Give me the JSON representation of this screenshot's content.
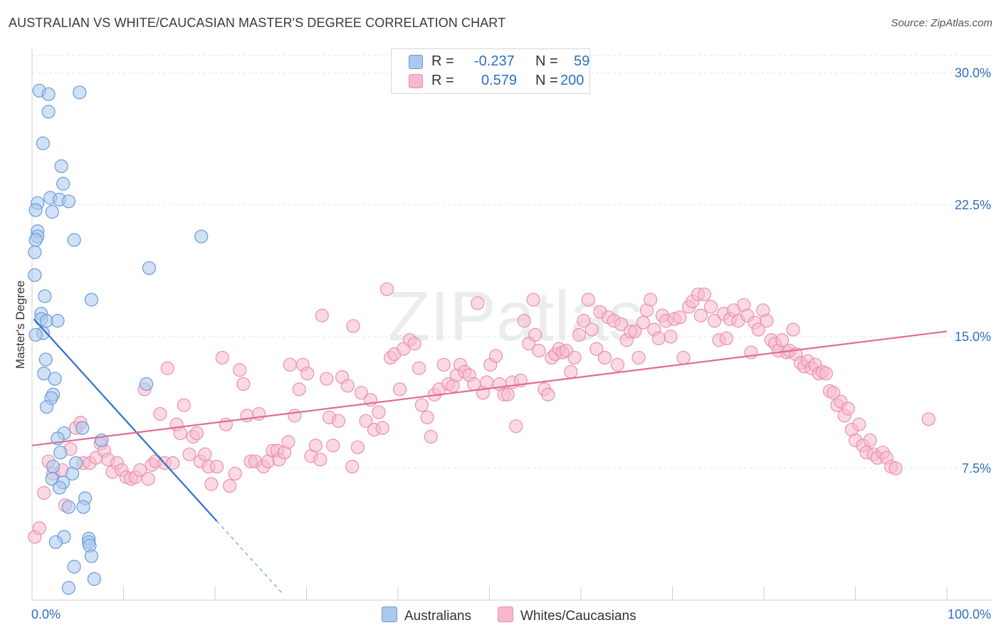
{
  "title": "AUSTRALIAN VS WHITE/CAUCASIAN MASTER'S DEGREE CORRELATION CHART",
  "source": "Source: ZipAtlas.com",
  "watermark": "ZIPatlas",
  "colors": {
    "blue_fill": "#a9c8ee",
    "blue_stroke": "#6a9bd8",
    "blue_line": "#2d6fd0",
    "pink_fill": "#f6b9cc",
    "pink_stroke": "#ec8fae",
    "pink_line": "#e06c95",
    "accent_text": "#2d6fc0"
  },
  "legend_top": {
    "rows": [
      {
        "r_label": "R =",
        "r_value": "-0.237",
        "n_label": "N =",
        "n_value": "59"
      },
      {
        "r_label": "R =",
        "r_value": "0.579",
        "n_label": "N =",
        "n_value": "200"
      }
    ]
  },
  "chart_data": {
    "type": "scatter",
    "title": "AUSTRALIAN VS WHITE/CAUCASIAN MASTER'S DEGREE CORRELATION CHART",
    "xlabel": "",
    "ylabel": "Master's Degree",
    "xlim": [
      0,
      100
    ],
    "ylim": [
      0,
      31
    ],
    "x_tick_labels": [
      "0.0%",
      "100.0%"
    ],
    "y_ticks": [
      7.5,
      15.0,
      22.5,
      30.0
    ],
    "y_tick_labels": [
      "7.5%",
      "15.0%",
      "22.5%",
      "30.0%"
    ],
    "grid": true,
    "legend_position": "bottom",
    "series": [
      {
        "name": "Australians",
        "r": -0.237,
        "n": 59,
        "trend": {
          "x": [
            0.2,
            20.2
          ],
          "y": [
            16.0,
            4.5
          ],
          "dashed_to": [
            27.5,
            0.3
          ]
        },
        "points": [
          [
            0.8,
            29.0
          ],
          [
            1.8,
            28.8
          ],
          [
            5.2,
            28.9
          ],
          [
            1.8,
            27.8
          ],
          [
            1.2,
            26.0
          ],
          [
            3.2,
            24.7
          ],
          [
            3.4,
            23.7
          ],
          [
            2.0,
            22.9
          ],
          [
            3.0,
            22.8
          ],
          [
            4.0,
            22.7
          ],
          [
            0.6,
            22.6
          ],
          [
            0.4,
            22.2
          ],
          [
            2.2,
            22.1
          ],
          [
            0.6,
            21.0
          ],
          [
            0.6,
            20.7
          ],
          [
            0.4,
            20.5
          ],
          [
            4.6,
            20.5
          ],
          [
            18.5,
            20.7
          ],
          [
            0.3,
            19.8
          ],
          [
            12.8,
            18.9
          ],
          [
            0.3,
            18.5
          ],
          [
            1.4,
            17.3
          ],
          [
            6.5,
            17.1
          ],
          [
            1.0,
            16.3
          ],
          [
            1.0,
            16.0
          ],
          [
            1.6,
            15.9
          ],
          [
            2.8,
            15.9
          ],
          [
            1.2,
            15.2
          ],
          [
            0.4,
            15.1
          ],
          [
            1.5,
            13.7
          ],
          [
            1.3,
            12.9
          ],
          [
            12.5,
            12.3
          ],
          [
            2.5,
            12.6
          ],
          [
            2.3,
            11.7
          ],
          [
            2.1,
            11.5
          ],
          [
            1.6,
            11.0
          ],
          [
            5.5,
            9.8
          ],
          [
            3.5,
            9.5
          ],
          [
            7.6,
            9.1
          ],
          [
            2.8,
            9.2
          ],
          [
            3.1,
            8.4
          ],
          [
            4.8,
            7.8
          ],
          [
            2.3,
            7.6
          ],
          [
            4.4,
            7.2
          ],
          [
            2.2,
            6.9
          ],
          [
            3.4,
            6.7
          ],
          [
            3.0,
            6.4
          ],
          [
            5.8,
            5.8
          ],
          [
            4.0,
            5.3
          ],
          [
            5.6,
            5.3
          ],
          [
            3.5,
            3.6
          ],
          [
            6.2,
            3.5
          ],
          [
            2.6,
            3.3
          ],
          [
            6.2,
            3.3
          ],
          [
            6.3,
            3.1
          ],
          [
            6.5,
            2.5
          ],
          [
            4.6,
            1.9
          ],
          [
            6.8,
            1.2
          ],
          [
            4.0,
            0.7
          ]
        ]
      },
      {
        "name": "Whites/Caucasians",
        "r": 0.579,
        "n": 200,
        "trend": {
          "x": [
            0.0,
            100.0
          ],
          "y": [
            8.8,
            15.3
          ]
        },
        "points": [
          [
            0.3,
            3.6
          ],
          [
            0.8,
            4.1
          ],
          [
            1.3,
            6.1
          ],
          [
            1.8,
            7.9
          ],
          [
            2.3,
            7.2
          ],
          [
            3.3,
            7.4
          ],
          [
            3.6,
            5.4
          ],
          [
            4.2,
            8.6
          ],
          [
            4.8,
            9.8
          ],
          [
            5.3,
            10.1
          ],
          [
            5.6,
            7.8
          ],
          [
            6.3,
            7.8
          ],
          [
            7.0,
            8.1
          ],
          [
            7.5,
            8.9
          ],
          [
            7.9,
            8.5
          ],
          [
            8.3,
            8.0
          ],
          [
            8.8,
            7.3
          ],
          [
            9.3,
            7.8
          ],
          [
            9.8,
            7.4
          ],
          [
            10.3,
            7.0
          ],
          [
            10.8,
            6.9
          ],
          [
            11.3,
            7.0
          ],
          [
            11.8,
            7.4
          ],
          [
            12.3,
            12.0
          ],
          [
            12.7,
            6.9
          ],
          [
            13.1,
            7.7
          ],
          [
            13.5,
            7.9
          ],
          [
            14.0,
            10.6
          ],
          [
            14.5,
            7.8
          ],
          [
            14.8,
            13.2
          ],
          [
            15.4,
            7.8
          ],
          [
            15.8,
            10.0
          ],
          [
            16.2,
            9.5
          ],
          [
            16.6,
            11.1
          ],
          [
            17.2,
            8.3
          ],
          [
            17.6,
            9.3
          ],
          [
            18.0,
            9.5
          ],
          [
            18.4,
            7.9
          ],
          [
            18.9,
            8.3
          ],
          [
            19.3,
            7.6
          ],
          [
            19.6,
            6.6
          ],
          [
            20.2,
            7.6
          ],
          [
            20.8,
            13.8
          ],
          [
            21.2,
            10.0
          ],
          [
            21.6,
            6.5
          ],
          [
            22.2,
            7.2
          ],
          [
            22.7,
            13.1
          ],
          [
            23.1,
            12.3
          ],
          [
            23.5,
            10.5
          ],
          [
            23.9,
            7.9
          ],
          [
            24.4,
            7.9
          ],
          [
            24.8,
            10.6
          ],
          [
            25.3,
            7.6
          ],
          [
            25.8,
            7.9
          ],
          [
            26.3,
            8.5
          ],
          [
            26.8,
            8.5
          ],
          [
            27.0,
            8.0
          ],
          [
            27.6,
            8.4
          ],
          [
            28.0,
            9.0
          ],
          [
            28.2,
            13.4
          ],
          [
            28.7,
            10.5
          ],
          [
            29.2,
            12.0
          ],
          [
            29.6,
            13.4
          ],
          [
            30.1,
            12.9
          ],
          [
            30.5,
            8.2
          ],
          [
            31.0,
            8.8
          ],
          [
            31.5,
            8.0
          ],
          [
            31.7,
            16.2
          ],
          [
            32.2,
            12.6
          ],
          [
            32.5,
            10.4
          ],
          [
            32.9,
            8.8
          ],
          [
            33.5,
            10.2
          ],
          [
            33.9,
            12.7
          ],
          [
            34.5,
            12.2
          ],
          [
            35.0,
            7.6
          ],
          [
            35.1,
            15.6
          ],
          [
            35.6,
            8.7
          ],
          [
            36.0,
            11.8
          ],
          [
            36.5,
            10.2
          ],
          [
            37.0,
            11.4
          ],
          [
            37.4,
            9.7
          ],
          [
            37.9,
            10.7
          ],
          [
            38.3,
            9.8
          ],
          [
            38.8,
            17.7
          ],
          [
            39.2,
            13.8
          ],
          [
            39.6,
            14.0
          ],
          [
            40.2,
            12.0
          ],
          [
            40.6,
            14.3
          ],
          [
            41.3,
            14.8
          ],
          [
            41.8,
            14.6
          ],
          [
            42.3,
            13.2
          ],
          [
            42.6,
            11.1
          ],
          [
            43.2,
            10.4
          ],
          [
            43.6,
            9.3
          ],
          [
            44.0,
            11.7
          ],
          [
            44.5,
            12.0
          ],
          [
            45.0,
            13.4
          ],
          [
            45.5,
            12.3
          ],
          [
            46.0,
            12.2
          ],
          [
            46.4,
            12.8
          ],
          [
            46.8,
            13.4
          ],
          [
            47.3,
            13.0
          ],
          [
            47.8,
            12.8
          ],
          [
            48.3,
            12.3
          ],
          [
            48.7,
            16.9
          ],
          [
            49.3,
            11.8
          ],
          [
            49.7,
            12.4
          ],
          [
            50.1,
            13.4
          ],
          [
            50.7,
            13.9
          ],
          [
            51.1,
            12.3
          ],
          [
            51.6,
            11.7
          ],
          [
            52.0,
            11.7
          ],
          [
            52.5,
            12.4
          ],
          [
            52.9,
            9.9
          ],
          [
            53.4,
            12.5
          ],
          [
            53.8,
            15.9
          ],
          [
            54.3,
            14.6
          ],
          [
            54.8,
            17.1
          ],
          [
            55.0,
            15.1
          ],
          [
            55.4,
            14.2
          ],
          [
            56.0,
            12.0
          ],
          [
            56.4,
            11.7
          ],
          [
            56.8,
            13.8
          ],
          [
            57.2,
            14.0
          ],
          [
            57.6,
            14.3
          ],
          [
            58.0,
            14.1
          ],
          [
            58.4,
            14.2
          ],
          [
            58.9,
            13.0
          ],
          [
            59.3,
            13.8
          ],
          [
            59.8,
            15.1
          ],
          [
            60.3,
            15.9
          ],
          [
            60.8,
            17.1
          ],
          [
            61.2,
            15.4
          ],
          [
            61.7,
            14.3
          ],
          [
            62.1,
            16.4
          ],
          [
            62.6,
            13.8
          ],
          [
            63.0,
            16.1
          ],
          [
            63.6,
            15.9
          ],
          [
            64.0,
            13.4
          ],
          [
            64.4,
            15.7
          ],
          [
            65.0,
            14.8
          ],
          [
            65.4,
            15.3
          ],
          [
            65.9,
            15.3
          ],
          [
            66.3,
            13.8
          ],
          [
            66.8,
            15.8
          ],
          [
            67.2,
            16.5
          ],
          [
            67.6,
            17.1
          ],
          [
            68.0,
            15.4
          ],
          [
            68.5,
            14.9
          ],
          [
            68.9,
            16.2
          ],
          [
            69.3,
            15.9
          ],
          [
            69.8,
            15.0
          ],
          [
            70.2,
            16.0
          ],
          [
            70.8,
            16.1
          ],
          [
            71.2,
            13.8
          ],
          [
            71.8,
            16.7
          ],
          [
            72.2,
            17.0
          ],
          [
            72.8,
            17.4
          ],
          [
            73.1,
            16.2
          ],
          [
            73.5,
            17.4
          ],
          [
            74.2,
            16.7
          ],
          [
            74.6,
            15.9
          ],
          [
            75.1,
            14.8
          ],
          [
            75.6,
            16.3
          ],
          [
            75.9,
            14.9
          ],
          [
            76.3,
            16.0
          ],
          [
            76.7,
            16.5
          ],
          [
            77.2,
            15.9
          ],
          [
            77.8,
            16.8
          ],
          [
            78.2,
            16.2
          ],
          [
            78.6,
            14.1
          ],
          [
            79.0,
            15.8
          ],
          [
            79.4,
            15.4
          ],
          [
            79.9,
            16.5
          ],
          [
            80.3,
            15.9
          ],
          [
            80.8,
            14.8
          ],
          [
            81.2,
            14.6
          ],
          [
            81.6,
            14.2
          ],
          [
            82.0,
            14.8
          ],
          [
            82.5,
            14.1
          ],
          [
            82.8,
            14.2
          ],
          [
            83.2,
            15.4
          ],
          [
            83.5,
            14.0
          ],
          [
            84.0,
            13.5
          ],
          [
            84.4,
            13.3
          ],
          [
            84.8,
            13.6
          ],
          [
            85.2,
            13.2
          ],
          [
            85.6,
            13.4
          ],
          [
            86.0,
            12.9
          ],
          [
            86.4,
            13.0
          ],
          [
            86.8,
            12.9
          ],
          [
            87.2,
            11.9
          ],
          [
            87.6,
            11.8
          ],
          [
            88.0,
            11.1
          ],
          [
            88.4,
            11.3
          ],
          [
            88.8,
            10.5
          ],
          [
            89.2,
            10.9
          ],
          [
            89.6,
            9.7
          ],
          [
            90.0,
            9.1
          ],
          [
            90.4,
            10.0
          ],
          [
            90.8,
            8.8
          ],
          [
            91.2,
            8.4
          ],
          [
            91.6,
            9.1
          ],
          [
            92.0,
            8.3
          ],
          [
            92.4,
            8.1
          ],
          [
            93.0,
            8.4
          ],
          [
            93.4,
            8.1
          ],
          [
            93.9,
            7.6
          ],
          [
            94.4,
            7.5
          ],
          [
            98.0,
            10.3
          ]
        ]
      }
    ]
  },
  "bottom_legend": [
    {
      "label": "Australians"
    },
    {
      "label": "Whites/Caucasians"
    }
  ]
}
